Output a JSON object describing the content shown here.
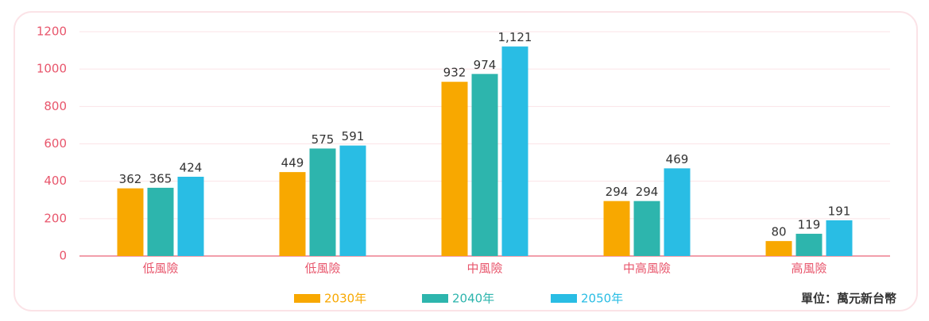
{
  "chart_data": {
    "type": "bar",
    "categories": [
      "低風險",
      "低風險",
      "中風險",
      "中高風險",
      "高風險"
    ],
    "series": [
      {
        "name": "2030年",
        "color": "#f8a800",
        "values": [
          362,
          449,
          932,
          294,
          80
        ]
      },
      {
        "name": "2040年",
        "color": "#2db5ad",
        "values": [
          365,
          575,
          974,
          294,
          119
        ]
      },
      {
        "name": "2050年",
        "color": "#29bde4",
        "values": [
          424,
          591,
          1121,
          469,
          191
        ],
        "value_labels": [
          "424",
          "591",
          "1,121",
          "469",
          "191"
        ]
      }
    ],
    "ylim": [
      0,
      1200
    ],
    "yticks": [
      0,
      200,
      400,
      600,
      800,
      1000,
      1200
    ],
    "grid": true,
    "legend": "bottom",
    "note": "單位：萬元新台幣"
  }
}
